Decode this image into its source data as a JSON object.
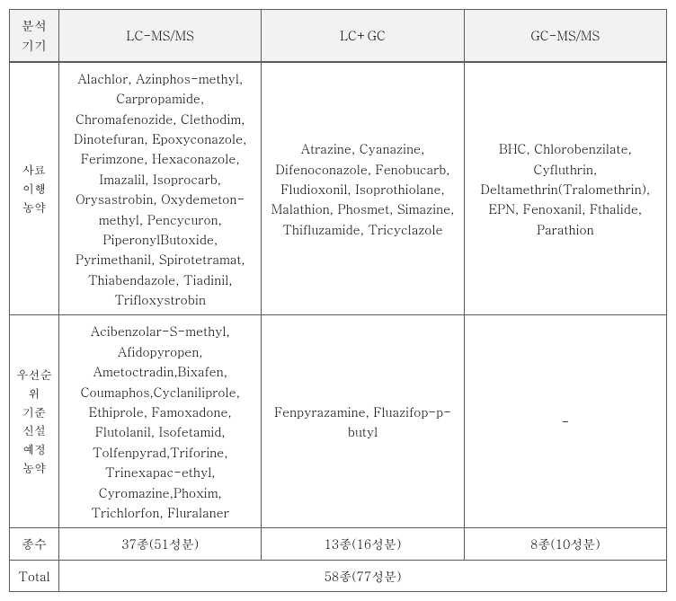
{
  "header": {
    "col0": "분석\n기기",
    "col1": "LC-MS/MS",
    "col2": "LC+GC",
    "col3": "GC-MS/MS"
  },
  "rows": [
    {
      "label": "사료\n이행\n농약",
      "c1": "Alachlor, Azinphos-methyl, Carpropamide, Chromafenozide, Clethodim, Dinotefuran, Epoxyconazole, Ferimzone, Hexaconazole, Imazalil, Isoprocarb, Orysastrobin, Oxydemeton-methyl, Pencycuron, PiperonylButoxide, Pyrimethanil, Spirotetramat, Thiabendazole, Tiadinil, Trifloxystrobin",
      "c2": "Atrazine, Cyanazine, Difenoconazole, Fenobucarb, Fludioxonil, Isoprothiolane, Malathion, Phosmet, Simazine, Thifluzamide, Tricyclazole",
      "c3": "BHC, Chlorobenzilate, Cyfluthrin, Deltamethrin(Tralomethrin), EPN, Fenoxanil, Fthalide, Parathion"
    },
    {
      "label": "우선순위\n기준\n신설\n예정\n농약",
      "c1": "Acibenzolar-S-methyl, Afidopyropen, Ametoctradin,Bixafen, Coumaphos,Cyclaniliprole, Ethiprole, Famoxadone, Flutolanil, Isofetamid, Tolfenpyrad,Triforine, Trinexapac-ethyl, Cyromazine,Phoxim, Trichlorfon, Fluralaner",
      "c2": "Fenpyrazamine, Fluazifop-p-butyl",
      "c3": "-"
    }
  ],
  "count_row": {
    "label": "종수",
    "c1": "37종(51성분)",
    "c2": "13종(16성분)",
    "c3": "8종(10성분)"
  },
  "total_row": {
    "label": "Total",
    "value": "58종(77성분)"
  }
}
